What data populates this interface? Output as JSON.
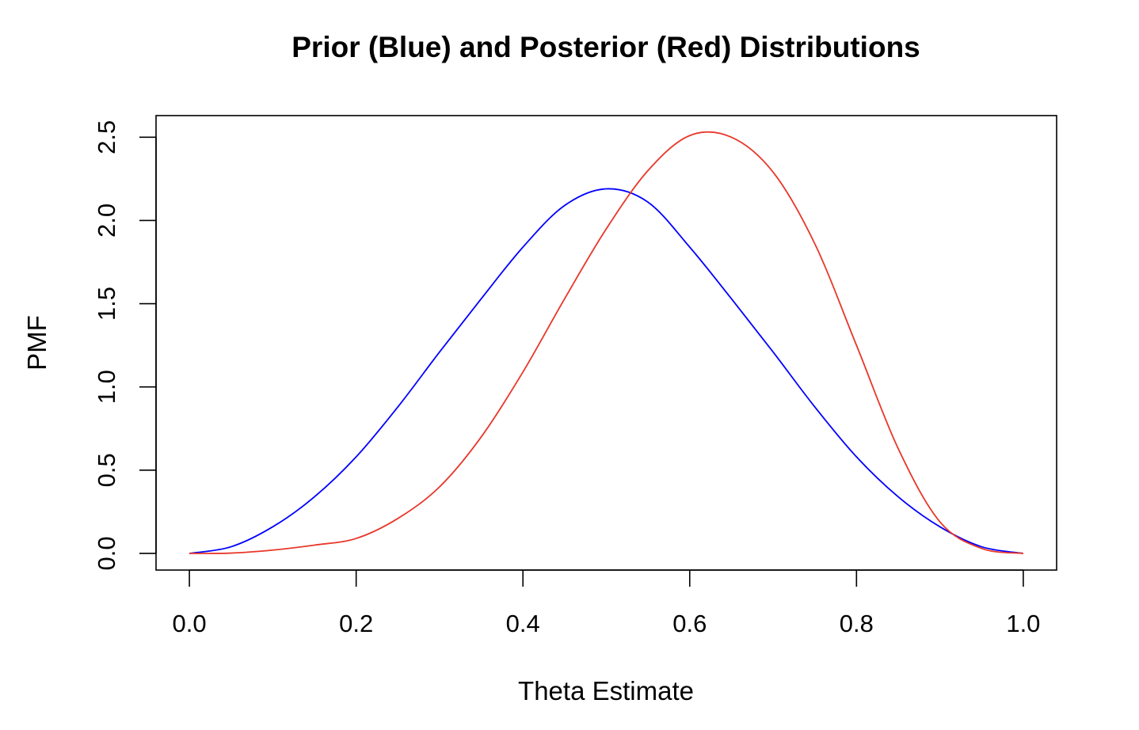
{
  "chart_data": {
    "type": "line",
    "title": "Prior (Blue) and Posterior (Red) Distributions",
    "xlabel": "Theta Estimate",
    "ylabel": "PMF",
    "xlim": [
      -0.04,
      1.04
    ],
    "ylim": [
      -0.1,
      2.63
    ],
    "x_ticks": [
      "0.0",
      "0.2",
      "0.4",
      "0.6",
      "0.8",
      "1.0"
    ],
    "x_tick_values": [
      0.0,
      0.2,
      0.4,
      0.6,
      0.8,
      1.0
    ],
    "y_ticks": [
      "0.0",
      "0.5",
      "1.0",
      "1.5",
      "2.0",
      "2.5"
    ],
    "y_tick_values": [
      0.0,
      0.5,
      1.0,
      1.5,
      2.0,
      2.5
    ],
    "grid": false,
    "legend": "none",
    "x": [
      0.0,
      0.05,
      0.1,
      0.15,
      0.2,
      0.25,
      0.3,
      0.35,
      0.4,
      0.45,
      0.5,
      0.55,
      0.6,
      0.65,
      0.7,
      0.75,
      0.8,
      0.85,
      0.9,
      0.95,
      1.0
    ],
    "series": [
      {
        "color": "#0000ff",
        "values": [
          0.0,
          0.04,
          0.16,
          0.34,
          0.58,
          0.88,
          1.21,
          1.53,
          1.84,
          2.09,
          2.19,
          2.11,
          1.84,
          1.53,
          1.21,
          0.88,
          0.58,
          0.34,
          0.16,
          0.04,
          0.0
        ]
      },
      {
        "color": "#e8372a",
        "values": [
          0.0,
          0.002,
          0.02,
          0.05,
          0.09,
          0.21,
          0.4,
          0.7,
          1.09,
          1.53,
          1.95,
          2.3,
          2.51,
          2.5,
          2.29,
          1.86,
          1.25,
          0.63,
          0.19,
          0.03,
          0.0
        ]
      }
    ]
  }
}
